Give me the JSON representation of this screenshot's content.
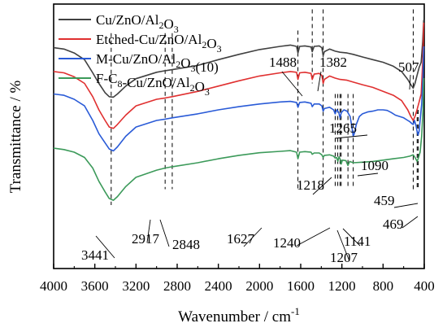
{
  "chart_data": {
    "type": "line",
    "xlabel": "Wavenumber / cm",
    "xlabel_sup": "-1",
    "ylabel": "Transmittance / %",
    "x_reversed": true,
    "xlim": [
      4000,
      400
    ],
    "ylim": [
      0,
      1
    ],
    "x_ticks": [
      4000,
      3600,
      3200,
      2800,
      2400,
      2000,
      1600,
      1200,
      800,
      400
    ],
    "x_tick_labels": [
      "4000",
      "3600",
      "3200",
      "2800",
      "2400",
      "2000",
      "1600",
      "1200",
      "800",
      "400"
    ],
    "y_ticks_shown": false,
    "legend_position": "top-left",
    "series": [
      {
        "name": "Cu/ZnO/Al2O3",
        "legend_parts": [
          [
            "Cu/ZnO/Al",
            ""
          ],
          [
            "2",
            "sub"
          ],
          [
            "O",
            ""
          ],
          [
            "3",
            "sub"
          ]
        ],
        "color": "#404040",
        "points": [
          [
            4000,
            0.835
          ],
          [
            3900,
            0.83
          ],
          [
            3800,
            0.815
          ],
          [
            3700,
            0.79
          ],
          [
            3620,
            0.74
          ],
          [
            3560,
            0.7
          ],
          [
            3500,
            0.665
          ],
          [
            3460,
            0.65
          ],
          [
            3420,
            0.648
          ],
          [
            3380,
            0.66
          ],
          [
            3300,
            0.69
          ],
          [
            3200,
            0.718
          ],
          [
            3000,
            0.742
          ],
          [
            2917,
            0.748
          ],
          [
            2848,
            0.752
          ],
          [
            2600,
            0.768
          ],
          [
            2400,
            0.79
          ],
          [
            2200,
            0.81
          ],
          [
            2000,
            0.828
          ],
          [
            1800,
            0.84
          ],
          [
            1700,
            0.845
          ],
          [
            1640,
            0.84
          ],
          [
            1627,
            0.815
          ],
          [
            1610,
            0.84
          ],
          [
            1560,
            0.842
          ],
          [
            1500,
            0.838
          ],
          [
            1488,
            0.82
          ],
          [
            1470,
            0.84
          ],
          [
            1420,
            0.842
          ],
          [
            1395,
            0.835
          ],
          [
            1382,
            0.805
          ],
          [
            1370,
            0.82
          ],
          [
            1320,
            0.83
          ],
          [
            1265,
            0.822
          ],
          [
            1218,
            0.818
          ],
          [
            1150,
            0.815
          ],
          [
            1090,
            0.81
          ],
          [
            1000,
            0.8
          ],
          [
            900,
            0.79
          ],
          [
            800,
            0.78
          ],
          [
            700,
            0.765
          ],
          [
            620,
            0.745
          ],
          [
            560,
            0.715
          ],
          [
            530,
            0.695
          ],
          [
            507,
            0.682
          ],
          [
            490,
            0.7
          ],
          [
            470,
            0.73
          ],
          [
            450,
            0.76
          ],
          [
            430,
            0.78
          ],
          [
            415,
            0.86
          ],
          [
            405,
            0.94
          ]
        ]
      },
      {
        "name": "Etched-Cu/ZnO/Al2O3",
        "legend_parts": [
          [
            "Etched-Cu/ZnO/Al",
            ""
          ],
          [
            "2",
            "sub"
          ],
          [
            "O",
            ""
          ],
          [
            "3",
            "sub"
          ]
        ],
        "color": "#e03030",
        "points": [
          [
            4000,
            0.745
          ],
          [
            3900,
            0.74
          ],
          [
            3800,
            0.725
          ],
          [
            3700,
            0.7
          ],
          [
            3620,
            0.65
          ],
          [
            3560,
            0.6
          ],
          [
            3500,
            0.56
          ],
          [
            3460,
            0.535
          ],
          [
            3420,
            0.53
          ],
          [
            3380,
            0.545
          ],
          [
            3300,
            0.58
          ],
          [
            3200,
            0.615
          ],
          [
            3000,
            0.64
          ],
          [
            2917,
            0.645
          ],
          [
            2848,
            0.65
          ],
          [
            2600,
            0.67
          ],
          [
            2400,
            0.69
          ],
          [
            2200,
            0.71
          ],
          [
            2000,
            0.728
          ],
          [
            1800,
            0.74
          ],
          [
            1700,
            0.745
          ],
          [
            1640,
            0.742
          ],
          [
            1627,
            0.715
          ],
          [
            1610,
            0.74
          ],
          [
            1560,
            0.742
          ],
          [
            1500,
            0.738
          ],
          [
            1488,
            0.715
          ],
          [
            1470,
            0.735
          ],
          [
            1420,
            0.738
          ],
          [
            1395,
            0.73
          ],
          [
            1382,
            0.7
          ],
          [
            1370,
            0.715
          ],
          [
            1320,
            0.728
          ],
          [
            1265,
            0.72
          ],
          [
            1218,
            0.715
          ],
          [
            1150,
            0.712
          ],
          [
            1090,
            0.705
          ],
          [
            1000,
            0.695
          ],
          [
            900,
            0.685
          ],
          [
            800,
            0.67
          ],
          [
            700,
            0.655
          ],
          [
            620,
            0.635
          ],
          [
            560,
            0.6
          ],
          [
            530,
            0.575
          ],
          [
            507,
            0.56
          ],
          [
            490,
            0.575
          ],
          [
            470,
            0.6
          ],
          [
            450,
            0.63
          ],
          [
            430,
            0.66
          ],
          [
            415,
            0.78
          ],
          [
            405,
            0.93
          ]
        ]
      },
      {
        "name": "M-Cu/ZnO/Al2O3(10)",
        "legend_parts": [
          [
            "M-Cu/ZnO/Al",
            ""
          ],
          [
            "2",
            "sub"
          ],
          [
            "O",
            ""
          ],
          [
            "3",
            "sub"
          ],
          [
            "(10)",
            ""
          ]
        ],
        "color": "#2a5bd7",
        "points": [
          [
            4000,
            0.66
          ],
          [
            3900,
            0.655
          ],
          [
            3800,
            0.64
          ],
          [
            3700,
            0.615
          ],
          [
            3620,
            0.56
          ],
          [
            3560,
            0.51
          ],
          [
            3500,
            0.475
          ],
          [
            3460,
            0.452
          ],
          [
            3420,
            0.445
          ],
          [
            3380,
            0.46
          ],
          [
            3300,
            0.5
          ],
          [
            3200,
            0.535
          ],
          [
            3000,
            0.56
          ],
          [
            2917,
            0.565
          ],
          [
            2848,
            0.57
          ],
          [
            2600,
            0.585
          ],
          [
            2400,
            0.6
          ],
          [
            2200,
            0.612
          ],
          [
            2000,
            0.622
          ],
          [
            1800,
            0.63
          ],
          [
            1700,
            0.632
          ],
          [
            1640,
            0.628
          ],
          [
            1627,
            0.61
          ],
          [
            1610,
            0.628
          ],
          [
            1560,
            0.63
          ],
          [
            1500,
            0.625
          ],
          [
            1488,
            0.612
          ],
          [
            1470,
            0.622
          ],
          [
            1420,
            0.622
          ],
          [
            1395,
            0.615
          ],
          [
            1382,
            0.595
          ],
          [
            1370,
            0.605
          ],
          [
            1320,
            0.61
          ],
          [
            1280,
            0.6
          ],
          [
            1265,
            0.585
          ],
          [
            1250,
            0.6
          ],
          [
            1230,
            0.59
          ],
          [
            1218,
            0.57
          ],
          [
            1205,
            0.59
          ],
          [
            1180,
            0.6
          ],
          [
            1150,
            0.595
          ],
          [
            1120,
            0.575
          ],
          [
            1100,
            0.53
          ],
          [
            1090,
            0.5
          ],
          [
            1080,
            0.51
          ],
          [
            1060,
            0.545
          ],
          [
            1030,
            0.575
          ],
          [
            1000,
            0.585
          ],
          [
            950,
            0.592
          ],
          [
            900,
            0.595
          ],
          [
            850,
            0.6
          ],
          [
            800,
            0.6
          ],
          [
            760,
            0.598
          ],
          [
            720,
            0.59
          ],
          [
            680,
            0.58
          ],
          [
            640,
            0.575
          ],
          [
            600,
            0.57
          ],
          [
            560,
            0.56
          ],
          [
            540,
            0.555
          ],
          [
            520,
            0.548
          ],
          [
            507,
            0.545
          ],
          [
            495,
            0.56
          ],
          [
            480,
            0.54
          ],
          [
            470,
            0.52
          ],
          [
            459,
            0.505
          ],
          [
            450,
            0.52
          ],
          [
            440,
            0.56
          ],
          [
            425,
            0.62
          ],
          [
            412,
            0.73
          ],
          [
            405,
            0.84
          ]
        ]
      },
      {
        "name": "F-C8-Cu/ZnO/Al2O3",
        "legend_parts": [
          [
            "F-C",
            ""
          ],
          [
            "8",
            "sub"
          ],
          [
            "-Cu/ZnO/Al",
            ""
          ],
          [
            "2",
            "sub"
          ],
          [
            "O",
            ""
          ],
          [
            "3",
            "sub"
          ]
        ],
        "color": "#3c9a5a",
        "points": [
          [
            4000,
            0.455
          ],
          [
            3900,
            0.45
          ],
          [
            3800,
            0.44
          ],
          [
            3700,
            0.42
          ],
          [
            3620,
            0.38
          ],
          [
            3560,
            0.33
          ],
          [
            3500,
            0.29
          ],
          [
            3460,
            0.265
          ],
          [
            3420,
            0.258
          ],
          [
            3380,
            0.272
          ],
          [
            3300,
            0.31
          ],
          [
            3200,
            0.345
          ],
          [
            3000,
            0.372
          ],
          [
            2917,
            0.38
          ],
          [
            2848,
            0.385
          ],
          [
            2600,
            0.4
          ],
          [
            2400,
            0.415
          ],
          [
            2200,
            0.428
          ],
          [
            2000,
            0.438
          ],
          [
            1800,
            0.443
          ],
          [
            1700,
            0.446
          ],
          [
            1640,
            0.44
          ],
          [
            1627,
            0.415
          ],
          [
            1610,
            0.44
          ],
          [
            1560,
            0.442
          ],
          [
            1500,
            0.44
          ],
          [
            1488,
            0.432
          ],
          [
            1470,
            0.437
          ],
          [
            1420,
            0.437
          ],
          [
            1395,
            0.43
          ],
          [
            1382,
            0.42
          ],
          [
            1370,
            0.428
          ],
          [
            1320,
            0.43
          ],
          [
            1280,
            0.425
          ],
          [
            1265,
            0.418
          ],
          [
            1250,
            0.42
          ],
          [
            1240,
            0.405
          ],
          [
            1228,
            0.422
          ],
          [
            1218,
            0.415
          ],
          [
            1207,
            0.395
          ],
          [
            1195,
            0.41
          ],
          [
            1160,
            0.408
          ],
          [
            1141,
            0.39
          ],
          [
            1125,
            0.405
          ],
          [
            1090,
            0.4
          ],
          [
            1000,
            0.402
          ],
          [
            900,
            0.405
          ],
          [
            800,
            0.41
          ],
          [
            700,
            0.415
          ],
          [
            600,
            0.42
          ],
          [
            540,
            0.425
          ],
          [
            507,
            0.43
          ],
          [
            490,
            0.42
          ],
          [
            469,
            0.405
          ],
          [
            455,
            0.42
          ],
          [
            440,
            0.44
          ],
          [
            425,
            0.5
          ],
          [
            412,
            0.6
          ],
          [
            405,
            0.72
          ]
        ]
      }
    ],
    "peak_labels": [
      {
        "text": "3441",
        "x": 3441,
        "line_top": 0.89,
        "line_bottom": 0.24
      },
      {
        "text": "2917",
        "x": 2917,
        "line_top": 0.89,
        "line_bottom": 0.3
      },
      {
        "text": "2848",
        "x": 2848,
        "line_top": 0.89,
        "line_bottom": 0.3
      },
      {
        "text": "1627",
        "x": 1627,
        "line_top": 0.9,
        "line_bottom": 0.3
      },
      {
        "text": "1488",
        "x": 1488,
        "line_top": 0.98,
        "line_bottom": 0.7
      },
      {
        "text": "1382",
        "x": 1382,
        "line_top": 0.98,
        "line_bottom": 0.3
      },
      {
        "text": "1265",
        "x": 1265,
        "line_top": 0.66,
        "line_bottom": 0.3
      },
      {
        "text": "1240",
        "x": 1240,
        "line_top": 0.66,
        "line_bottom": 0.3
      },
      {
        "text": "1218",
        "x": 1218,
        "line_top": 0.66,
        "line_bottom": 0.3
      },
      {
        "text": "1207",
        "x": 1207,
        "line_top": 0.66,
        "line_bottom": 0.3
      },
      {
        "text": "1141",
        "x": 1141,
        "line_top": 0.66,
        "line_bottom": 0.3
      },
      {
        "text": "1090",
        "x": 1090,
        "line_top": 0.66,
        "line_bottom": 0.3
      },
      {
        "text": "507",
        "x": 507,
        "line_top": 0.98,
        "line_bottom": 0.3
      },
      {
        "text": "469",
        "x": 469,
        "line_top": 0.6,
        "line_bottom": 0.3
      },
      {
        "text": "459",
        "x": 459,
        "line_top": 0.6,
        "line_bottom": 0.3
      }
    ]
  }
}
